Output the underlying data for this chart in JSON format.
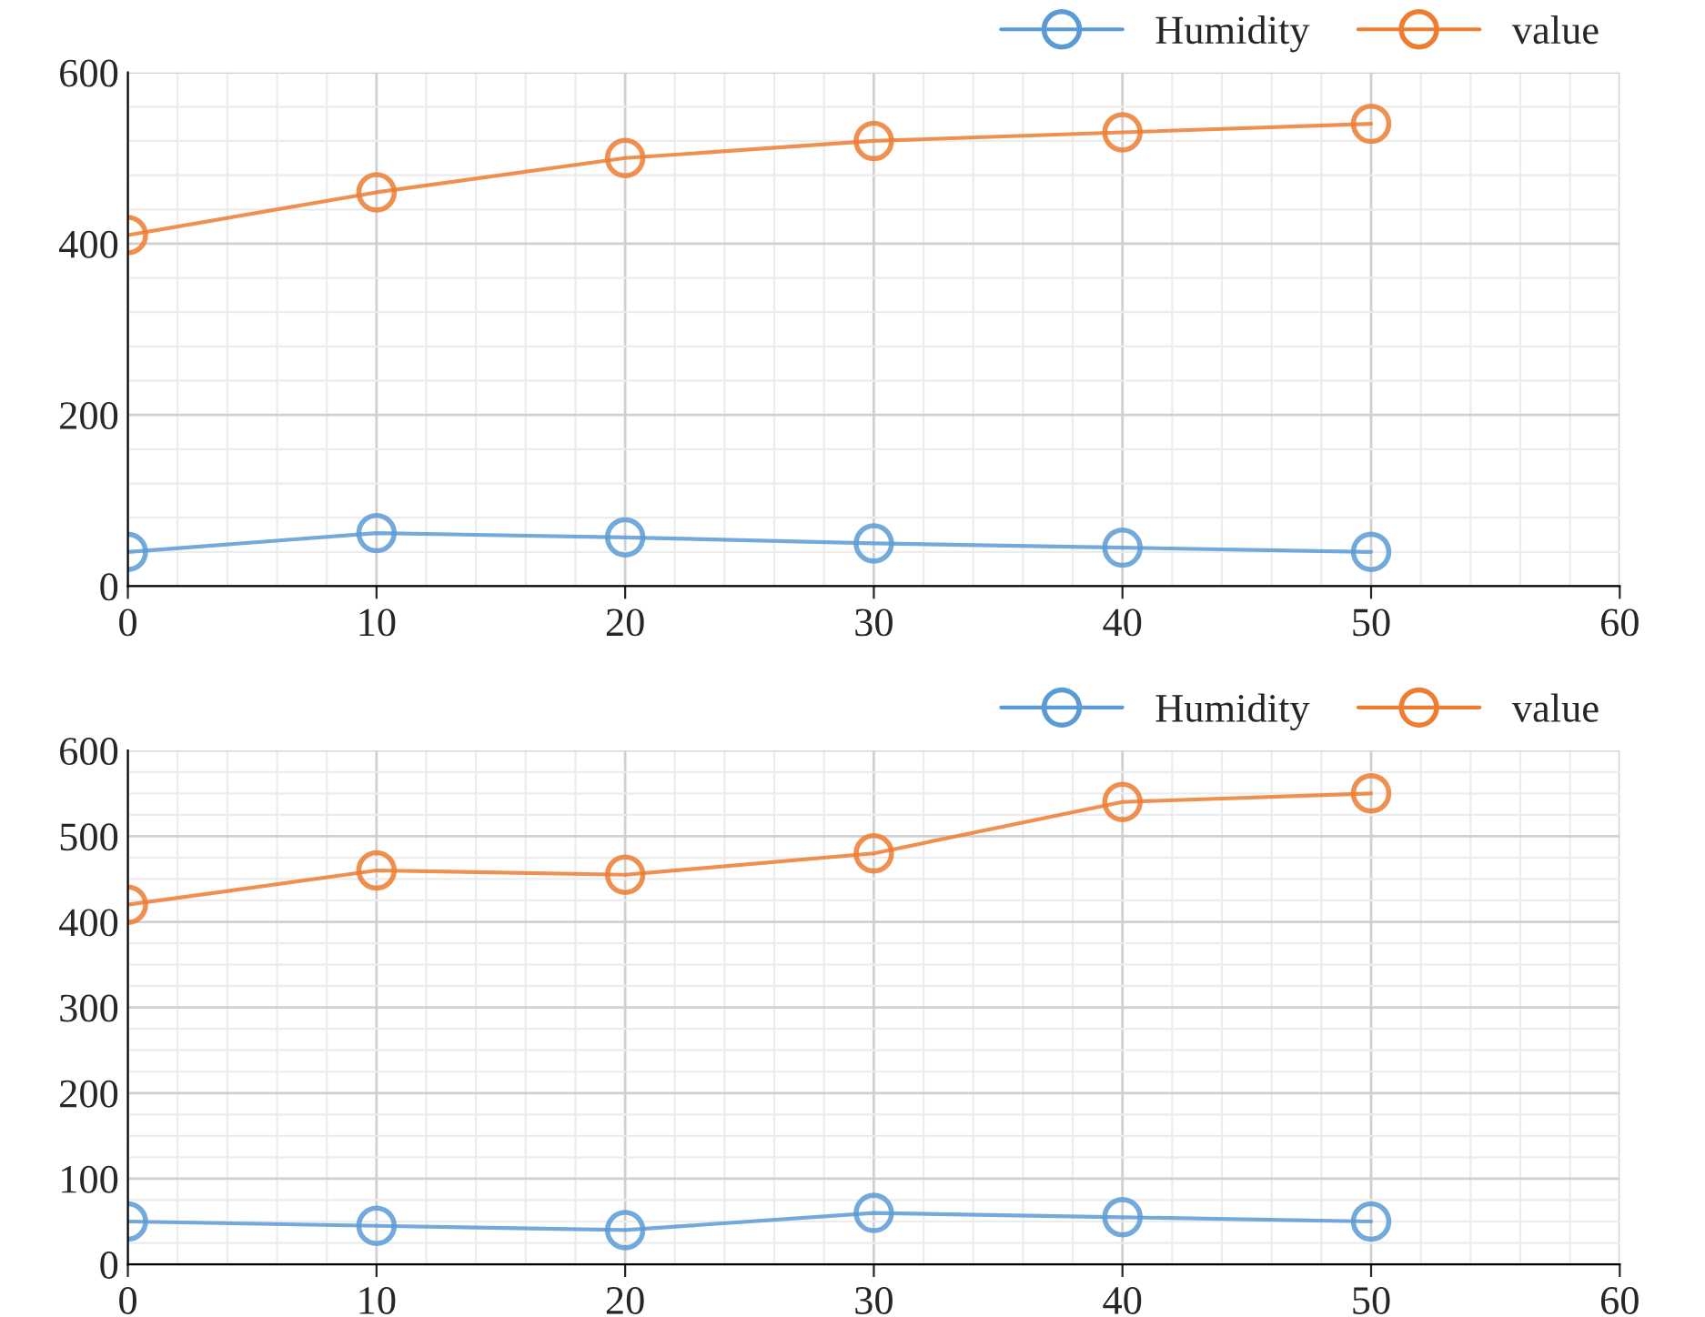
{
  "chart_data": [
    {
      "type": "line",
      "x": [
        0,
        10,
        20,
        30,
        40,
        50
      ],
      "xlim": [
        0,
        60
      ],
      "xticks": [
        0,
        10,
        20,
        30,
        40,
        50,
        60
      ],
      "ylim": [
        0,
        600
      ],
      "yticks": [
        0,
        200,
        400,
        600
      ],
      "grid": true,
      "legend": "top right",
      "marker": "circle",
      "line_style": "solid",
      "series": [
        {
          "name": "Humidity",
          "color": "#5b9bd5",
          "values": [
            40,
            62,
            57,
            50,
            45,
            40
          ]
        },
        {
          "name": "value",
          "color": "#ed7d31",
          "values": [
            410,
            460,
            500,
            520,
            530,
            540
          ]
        }
      ]
    },
    {
      "type": "line",
      "x": [
        0,
        10,
        20,
        30,
        40,
        50
      ],
      "xlim": [
        0,
        60
      ],
      "xticks": [
        0,
        10,
        20,
        30,
        40,
        50,
        60
      ],
      "ylim": [
        0,
        600
      ],
      "yticks": [
        0,
        100,
        200,
        300,
        400,
        500,
        600
      ],
      "grid": true,
      "legend": "top right",
      "marker": "circle",
      "line_style": "solid",
      "series": [
        {
          "name": "Humidity",
          "color": "#5b9bd5",
          "values": [
            50,
            45,
            40,
            60,
            55,
            50
          ]
        },
        {
          "name": "value",
          "color": "#ed7d31",
          "values": [
            420,
            460,
            455,
            480,
            540,
            550
          ]
        }
      ]
    }
  ]
}
